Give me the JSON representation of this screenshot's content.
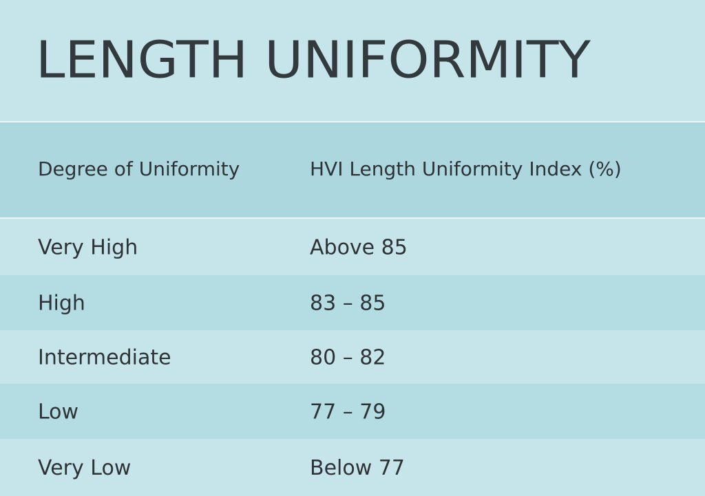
{
  "title": "LENGTH UNIFORMITY",
  "table": {
    "header": [
      "Degree of Uniformity",
      "HVI Length Uniformity Index (%)"
    ],
    "rows": [
      [
        "Very High",
        "Above 85"
      ],
      [
        "High",
        "83 – 85"
      ],
      [
        "Intermediate",
        "80 – 82"
      ],
      [
        "Low",
        "77 – 79"
      ],
      [
        "Very Low",
        "Below 77"
      ]
    ]
  }
}
